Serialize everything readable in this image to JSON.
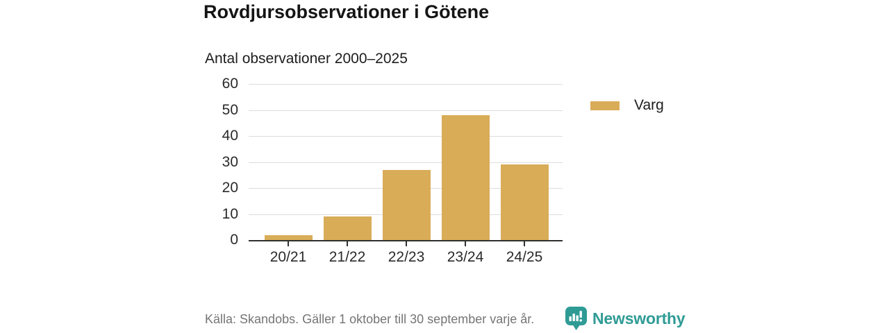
{
  "header": {
    "title": "Rovdjursobservationer i Götene",
    "subtitle": "Antal observationer 2000–2025"
  },
  "chart_data": {
    "type": "bar",
    "title": "Rovdjursobservationer i Götene",
    "subtitle": "Antal observationer 2000–2025",
    "categories": [
      "20/21",
      "21/22",
      "22/23",
      "23/24",
      "24/25"
    ],
    "series": [
      {
        "name": "Varg",
        "color": "#D9AC58",
        "values": [
          2,
          9,
          27,
          48,
          29
        ]
      }
    ],
    "xlabel": "",
    "ylabel": "",
    "ylim": [
      0,
      60
    ],
    "yticks": [
      0,
      10,
      20,
      30,
      40,
      50,
      60
    ],
    "grid": true,
    "legend_position": "right"
  },
  "legend": {
    "label": "Varg"
  },
  "footer": {
    "source": "Källa: Skandobs. Gäller 1 oktober till 30 september varje år.",
    "brand": "Newsworthy",
    "brand_color": "#2F9B95"
  }
}
